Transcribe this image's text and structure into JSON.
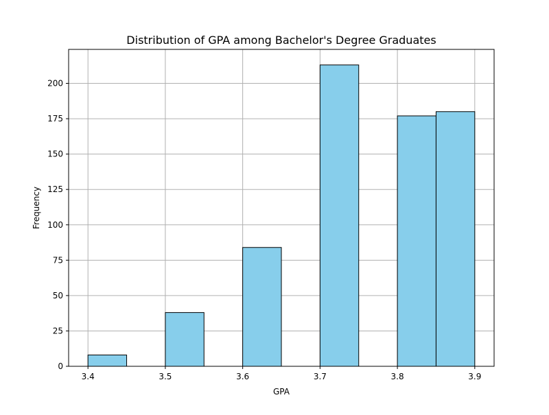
{
  "chart_data": {
    "type": "bar",
    "title": "Distribution of GPA among Bachelor's Degree Graduates",
    "xlabel": "GPA",
    "ylabel": "Frequency",
    "bins": [
      {
        "x0": 3.4,
        "x1": 3.45,
        "count": 8
      },
      {
        "x0": 3.45,
        "x1": 3.5,
        "count": 0
      },
      {
        "x0": 3.5,
        "x1": 3.55,
        "count": 38
      },
      {
        "x0": 3.55,
        "x1": 3.6,
        "count": 0
      },
      {
        "x0": 3.6,
        "x1": 3.65,
        "count": 84
      },
      {
        "x0": 3.65,
        "x1": 3.7,
        "count": 0
      },
      {
        "x0": 3.7,
        "x1": 3.75,
        "count": 213
      },
      {
        "x0": 3.75,
        "x1": 3.8,
        "count": 0
      },
      {
        "x0": 3.8,
        "x1": 3.85,
        "count": 177
      },
      {
        "x0": 3.85,
        "x1": 3.9,
        "count": 180
      }
    ],
    "xlim": [
      3.375,
      3.925
    ],
    "ylim": [
      0,
      224
    ],
    "xticks": [
      "3.4",
      "3.5",
      "3.6",
      "3.7",
      "3.8",
      "3.9"
    ],
    "yticks": [
      "0",
      "25",
      "50",
      "75",
      "100",
      "125",
      "150",
      "175",
      "200"
    ],
    "grid": true,
    "colors": {
      "bar_fill": "#87ceeb",
      "bar_edge": "#000000",
      "grid": "#b0b0b0"
    }
  }
}
